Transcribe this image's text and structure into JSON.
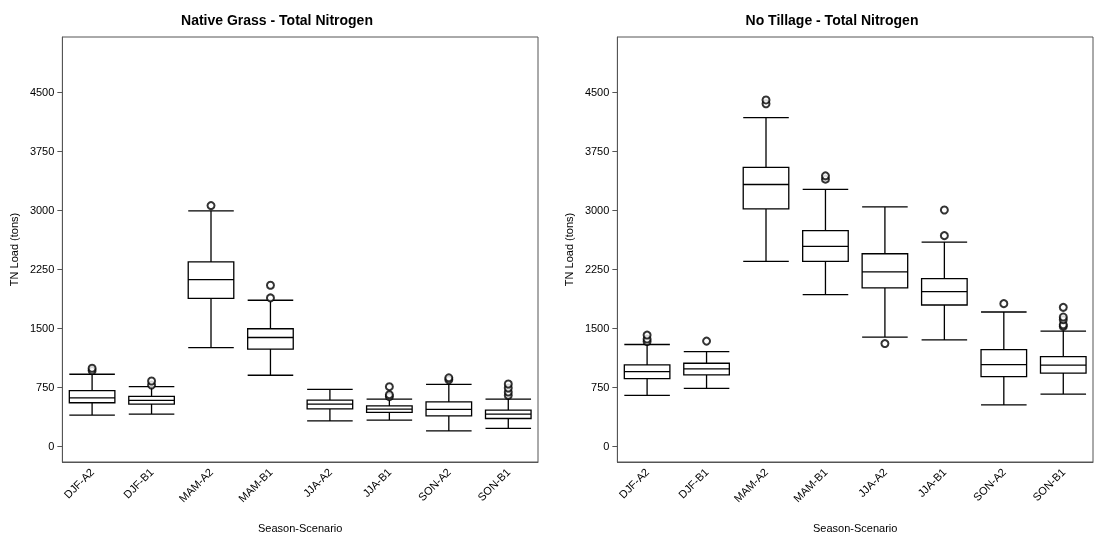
{
  "chart_data": [
    {
      "type": "box",
      "title": "Native Grass - Total Nitrogen",
      "xlabel": "Season-Scenario",
      "ylabel": "TN Load (tons)",
      "categories": [
        "DJF-A2",
        "DJF-B1",
        "MAM-A2",
        "MAM-B1",
        "JJA-A2",
        "JJA-B1",
        "SON-A2",
        "SON-B1"
      ],
      "ylim": [
        -200,
        5200
      ],
      "yticks": [
        0,
        750,
        1500,
        2250,
        3000,
        3750,
        4500
      ],
      "grid": false,
      "color": "#000000",
      "boxes": [
        {
          "low": 396,
          "q1": 553,
          "median": 616,
          "q3": 706,
          "high": 915,
          "outliers": [
            961,
            991
          ]
        },
        {
          "low": 408,
          "q1": 536,
          "median": 583,
          "q3": 634,
          "high": 757,
          "outliers": [
            778,
            829
          ]
        },
        {
          "low": 1254,
          "q1": 1880,
          "median": 2118,
          "q3": 2344,
          "high": 2990,
          "outliers": [
            3058
          ]
        },
        {
          "low": 902,
          "q1": 1234,
          "median": 1382,
          "q3": 1493,
          "high": 1855,
          "outliers": [
            1885,
            2046
          ]
        },
        {
          "low": 323,
          "q1": 476,
          "median": 536,
          "q3": 587,
          "high": 723
        },
        {
          "low": 332,
          "q1": 430,
          "median": 472,
          "q3": 514,
          "high": 600,
          "outliers": [
            630,
            655,
            757
          ]
        },
        {
          "low": 195,
          "q1": 387,
          "median": 468,
          "q3": 565,
          "high": 787,
          "outliers": [
            845,
            870
          ]
        },
        {
          "low": 226,
          "q1": 353,
          "median": 408,
          "q3": 459,
          "high": 600,
          "outliers": [
            647,
            689,
            740,
            791
          ]
        }
      ]
    },
    {
      "type": "box",
      "title": "No Tillage - Total Nitrogen",
      "xlabel": "Season-Scenario",
      "ylabel": "TN Load (tons)",
      "categories": [
        "DJF-A2",
        "DJF-B1",
        "MAM-A2",
        "MAM-B1",
        "JJA-A2",
        "JJA-B1",
        "SON-A2",
        "SON-B1"
      ],
      "ylim": [
        -200,
        5200
      ],
      "yticks": [
        0,
        750,
        1500,
        2250,
        3000,
        3750,
        4500
      ],
      "grid": false,
      "color": "#000000",
      "boxes": [
        {
          "low": 647,
          "q1": 859,
          "median": 948,
          "q3": 1034,
          "high": 1293,
          "outliers": [
            1331,
            1362,
            1413
          ]
        },
        {
          "low": 736,
          "q1": 906,
          "median": 982,
          "q3": 1055,
          "high": 1203,
          "outliers": [
            1336
          ]
        },
        {
          "low": 2348,
          "q1": 3015,
          "median": 3326,
          "q3": 3543,
          "high": 4176,
          "outliers": [
            4352,
            4400
          ]
        },
        {
          "low": 1927,
          "q1": 2348,
          "median": 2540,
          "q3": 2740,
          "high": 3263,
          "outliers": [
            3394,
            3436
          ]
        },
        {
          "low": 1387,
          "q1": 2012,
          "median": 2216,
          "q3": 2446,
          "high": 3041,
          "outliers": [
            1305
          ]
        },
        {
          "low": 1352,
          "q1": 1795,
          "median": 1965,
          "q3": 2131,
          "high": 2594,
          "outliers": [
            2676,
            3002
          ]
        },
        {
          "low": 527,
          "q1": 884,
          "median": 1037,
          "q3": 1229,
          "high": 1706,
          "outliers": [
            1812
          ]
        },
        {
          "low": 663,
          "q1": 928,
          "median": 1030,
          "q3": 1139,
          "high": 1464,
          "outliers": [
            1522,
            1544,
            1608,
            1642,
            1765
          ]
        }
      ]
    }
  ]
}
